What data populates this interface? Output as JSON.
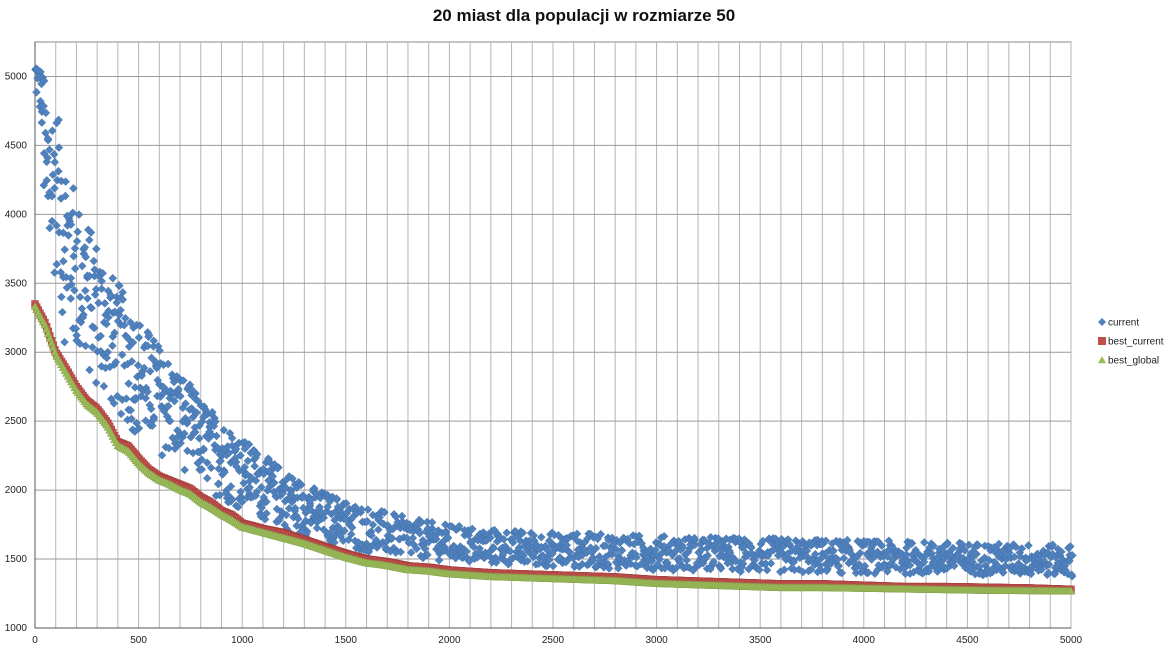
{
  "chart_data": {
    "type": "scatter",
    "title": "20 miast dla populacji w rozmiarze 50",
    "xlabel": "",
    "ylabel": "",
    "xlim": [
      0,
      5000
    ],
    "ylim": [
      1000,
      5250
    ],
    "x_ticks": [
      0,
      500,
      1000,
      1500,
      2000,
      2500,
      3000,
      3500,
      4000,
      4500,
      5000
    ],
    "x_tick_labels": [
      "0",
      "500",
      "1000",
      "1500",
      "2000",
      "2500",
      "3000",
      "3500",
      "4000",
      "4500",
      "5000"
    ],
    "y_ticks": [
      1000,
      1500,
      2000,
      2500,
      3000,
      3500,
      4000,
      4500,
      5000
    ],
    "y_tick_labels": [
      "1000",
      "1500",
      "2000",
      "2500",
      "3000",
      "3500",
      "4000",
      "4500",
      "5000"
    ],
    "grid": true,
    "legend_position": "right",
    "series": [
      {
        "name": "current",
        "marker": "diamond",
        "color": "#4F81BD",
        "x": [
          0,
          25,
          50,
          75,
          100,
          125,
          150,
          175,
          200,
          250,
          300,
          350,
          400,
          450,
          500,
          550,
          600,
          650,
          700,
          750,
          800,
          850,
          900,
          950,
          1000,
          1100,
          1200,
          1300,
          1400,
          1500,
          1600,
          1700,
          1800,
          1900,
          2000,
          2200,
          2400,
          2600,
          2800,
          3000,
          3300,
          3600,
          3900,
          4200,
          4500,
          4800,
          5000
        ],
        "upper": [
          5150,
          5050,
          4950,
          4850,
          4750,
          4600,
          4400,
          4250,
          4100,
          3950,
          3800,
          3600,
          3500,
          3350,
          3250,
          3150,
          3050,
          2950,
          2850,
          2750,
          2650,
          2580,
          2500,
          2450,
          2380,
          2250,
          2150,
          2050,
          1980,
          1930,
          1880,
          1840,
          1800,
          1770,
          1750,
          1720,
          1700,
          1690,
          1680,
          1670,
          1660,
          1650,
          1640,
          1630,
          1620,
          1610,
          1600
        ],
        "lower": [
          4800,
          4700,
          3500,
          3400,
          3600,
          3100,
          3000,
          2950,
          2900,
          2800,
          2700,
          2600,
          2500,
          2450,
          2350,
          2300,
          2250,
          2200,
          2150,
          2100,
          2050,
          1980,
          1920,
          1880,
          1850,
          1780,
          1700,
          1650,
          1620,
          1580,
          1550,
          1530,
          1510,
          1500,
          1480,
          1460,
          1450,
          1440,
          1430,
          1420,
          1410,
          1400,
          1395,
          1390,
          1385,
          1380,
          1375
        ]
      },
      {
        "name": "best_current",
        "marker": "square",
        "color": "#C0504D",
        "x": [
          0,
          50,
          100,
          150,
          200,
          250,
          300,
          350,
          400,
          450,
          500,
          550,
          600,
          650,
          700,
          750,
          800,
          850,
          900,
          950,
          1000,
          1100,
          1200,
          1300,
          1400,
          1500,
          1600,
          1700,
          1800,
          1900,
          2000,
          2100,
          2200,
          2400,
          2600,
          2800,
          3000,
          3200,
          3400,
          3600,
          3800,
          4000,
          4200,
          4400,
          4600,
          4800,
          5000
        ],
        "y": [
          3350,
          3210,
          3000,
          2880,
          2750,
          2650,
          2590,
          2490,
          2350,
          2320,
          2230,
          2150,
          2100,
          2070,
          2040,
          2010,
          1950,
          1910,
          1850,
          1820,
          1760,
          1720,
          1690,
          1640,
          1590,
          1540,
          1500,
          1480,
          1450,
          1440,
          1420,
          1410,
          1400,
          1390,
          1380,
          1370,
          1350,
          1340,
          1330,
          1320,
          1320,
          1310,
          1300,
          1300,
          1295,
          1290,
          1280
        ]
      },
      {
        "name": "best_global",
        "marker": "triangle",
        "color": "#9BBB59",
        "x": [
          0,
          50,
          100,
          150,
          200,
          250,
          300,
          350,
          400,
          450,
          500,
          550,
          600,
          650,
          700,
          750,
          800,
          850,
          900,
          950,
          1000,
          1100,
          1200,
          1300,
          1400,
          1500,
          1600,
          1700,
          1800,
          1900,
          2000,
          2100,
          2200,
          2400,
          2600,
          2800,
          3000,
          3200,
          3400,
          3600,
          3800,
          4000,
          4200,
          4400,
          4600,
          4800,
          5000
        ],
        "y": [
          3340,
          3200,
          2990,
          2860,
          2730,
          2630,
          2570,
          2470,
          2330,
          2290,
          2200,
          2130,
          2080,
          2050,
          2010,
          1980,
          1920,
          1880,
          1830,
          1790,
          1740,
          1700,
          1660,
          1620,
          1570,
          1520,
          1480,
          1460,
          1430,
          1420,
          1400,
          1390,
          1380,
          1370,
          1360,
          1350,
          1330,
          1320,
          1310,
          1300,
          1300,
          1295,
          1290,
          1285,
          1280,
          1278,
          1275
        ]
      }
    ]
  }
}
